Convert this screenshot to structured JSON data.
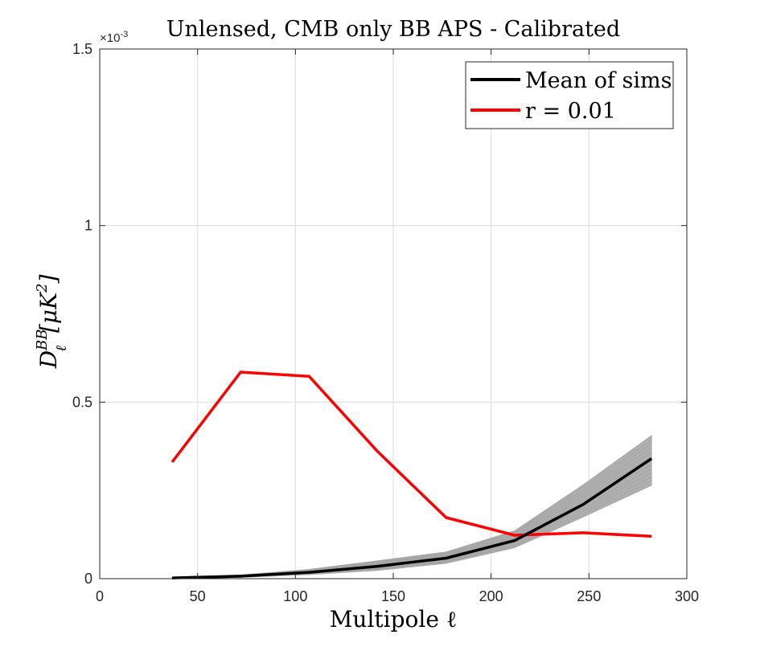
{
  "chart_data": {
    "type": "line",
    "title": "Unlensed, CMB only BB APS - Calibrated",
    "xlabel": "Multipole ℓ",
    "ylabel_main": "D",
    "ylabel_sub": "ℓ",
    "ylabel_sup": "BB",
    "ylabel_unit": "[μK",
    "ylabel_unit_sup": "2",
    "ylabel_unit_end": "]",
    "y_exponent_base": "×10",
    "y_exponent_power": "-3",
    "xlim": [
      0,
      300
    ],
    "ylim": [
      0,
      1.5
    ],
    "x_ticks": [
      0,
      50,
      100,
      150,
      200,
      250,
      300
    ],
    "y_ticks": [
      0,
      0.5,
      1,
      1.5
    ],
    "x_tick_labels": [
      "0",
      "50",
      "100",
      "150",
      "200",
      "250",
      "300"
    ],
    "y_tick_labels": [
      "0",
      "0.5",
      "1",
      "1.5"
    ],
    "grid": true,
    "legend_position": "top-right",
    "legend": [
      "Mean of sims",
      "r = 0.01"
    ],
    "x": [
      37,
      72,
      107,
      142,
      177,
      212,
      247,
      282
    ],
    "series": [
      {
        "name": "Mean of sims",
        "color": "#000000",
        "values": [
          0.002,
          0.007,
          0.018,
          0.035,
          0.058,
          0.108,
          0.21,
          0.34
        ]
      },
      {
        "name": "r = 0.01",
        "color": "#ff0000",
        "values": [
          0.33,
          0.585,
          0.573,
          0.36,
          0.173,
          0.123,
          0.13,
          0.12
        ]
      }
    ],
    "simulation_band": {
      "color": "#b0b0b0",
      "lower": [
        0.0,
        0.004,
        0.012,
        0.024,
        0.044,
        0.088,
        0.175,
        0.265
      ],
      "upper": [
        0.004,
        0.01,
        0.026,
        0.05,
        0.075,
        0.135,
        0.265,
        0.405
      ]
    }
  }
}
